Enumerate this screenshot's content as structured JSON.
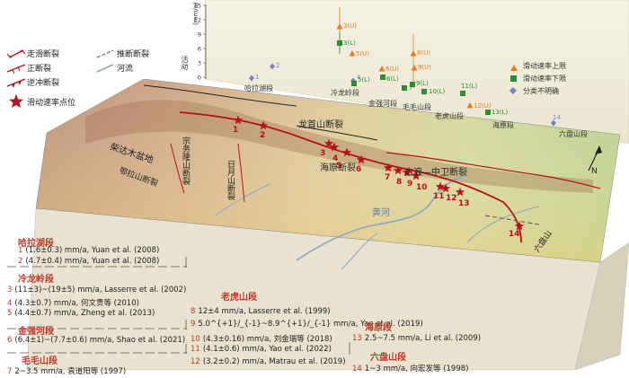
{
  "legend": {
    "strike_slip": "走滑断裂",
    "normal": "正断裂",
    "thrust": "逆冲断裂",
    "rate_site": "滑动速率点位",
    "inferred": "推断断裂",
    "river": "河流"
  },
  "plot": {
    "ylabel_unit": "(mm/a)",
    "ylabel_cn": "活动",
    "y_ticks": [
      "0",
      "3",
      "6",
      "9",
      "12",
      "15"
    ],
    "legend_upper": "滑动速率上限",
    "legend_lower": "滑动速率下限",
    "legend_unclear": "分类不明确",
    "segments": [
      "哈拉湖段",
      "冷龙岭段",
      "金强河段",
      "毛毛山段",
      "老虎山段",
      "海原段",
      "六盘山段"
    ],
    "point_labels": [
      {
        "label": "1",
        "color": "#7b7fc4"
      },
      {
        "label": "2",
        "color": "#7b7fc4"
      },
      {
        "label": "3(U)",
        "color": "#e67e22"
      },
      {
        "label": "3(L)",
        "color": "#2e8b2e"
      },
      {
        "label": "4",
        "color": "#7b7fc4"
      },
      {
        "label": "5(U)",
        "color": "#e67e22"
      },
      {
        "label": "5(L)",
        "color": "#2e8b2e"
      },
      {
        "label": "6(U)",
        "color": "#e67e22"
      },
      {
        "label": "6(L)",
        "color": "#2e8b2e"
      },
      {
        "label": "7",
        "color": "#2e8b2e"
      },
      {
        "label": "8(U)",
        "color": "#e67e22"
      },
      {
        "label": "9(U)",
        "color": "#e67e22"
      },
      {
        "label": "9(L)",
        "color": "#2e8b2e"
      },
      {
        "label": "10(L)",
        "color": "#2e8b2e"
      },
      {
        "label": "11(L)",
        "color": "#2e8b2e"
      },
      {
        "label": "12(U)",
        "color": "#e67e22"
      },
      {
        "label": "13(L)",
        "color": "#2e8b2e"
      },
      {
        "label": "14",
        "color": "#7b7fc4"
      }
    ]
  },
  "map_labels": {
    "qaidam": "柴达木盆地",
    "zongwulong": "宗务隆山断裂",
    "elashan": "鄂拉山断裂",
    "riyue": "日月山断裂",
    "longshou": "龙首山断裂",
    "gulang": "古浪—中卫断裂",
    "haiyuan": "海原断裂",
    "huanghe": "黄河",
    "liupan": "六盘山",
    "north": "N"
  },
  "site_numbers": [
    "1",
    "2",
    "3",
    "4",
    "5",
    "6",
    "7",
    "8",
    "9",
    "10",
    "11",
    "12",
    "13",
    "14"
  ],
  "refs": {
    "halahu": {
      "title": "哈拉湖段",
      "items": [
        {
          "n": "1",
          "text": "(1.6±0.3) mm/a,  Yuan et al. (2008)"
        },
        {
          "n": "2",
          "text": "(4.7±0.4) mm/a,  Yuan et al. (2008)"
        }
      ]
    },
    "lenglongling": {
      "title": "冷龙岭段",
      "items": [
        {
          "n": "3",
          "text": "(11±3)~(19±5) mm/a,  Lasserre et al. (2002)"
        },
        {
          "n": "4",
          "text": "(4.3±0.7) mm/a,  何文贵等 (2010)"
        },
        {
          "n": "5",
          "text": "(4.4±0.7) mm/a,  Zheng et al. (2013)"
        }
      ]
    },
    "jinqianghe": {
      "title": "金强河段",
      "items": [
        {
          "n": "6",
          "text": "(6.4±1)~(7.7±0.6) mm/a, Shao et al. (2021)"
        }
      ]
    },
    "maomaoshan": {
      "title": "毛毛山段",
      "items": [
        {
          "n": "7",
          "text": "2~3.5 mm/a,  袁道阳等 (1997)"
        }
      ]
    },
    "laohushan": {
      "title": "老虎山段",
      "items": [
        {
          "n": "8",
          "text": "12±4 mm/a,   Lasserre et al. (1999)"
        },
        {
          "n": "9",
          "text": "5.0^{+1}/_{-1}~8.9^{+1}/_{-1} mm/a,  Yao et al. (2019)"
        },
        {
          "n": "10",
          "text": "(4.3±0.16) mm/a,  刘金瑞等 (2018)"
        },
        {
          "n": "11",
          "text": "(4.1±0.6) mm/a,  Yao et al. (2022)"
        },
        {
          "n": "12",
          "text": "(3.2±0.2) mm/a,  Matrau et al. (2019)"
        }
      ]
    },
    "haiyuan": {
      "title": "海原段",
      "items": [
        {
          "n": "13",
          "text": "2.5~7.5 mm/a,  Li et al. (2009)"
        }
      ]
    },
    "liupanshan": {
      "title": "六盘山段",
      "items": [
        {
          "n": "14",
          "text": "1~3 mm/a,  向宏发等 (1998)"
        }
      ]
    }
  },
  "colors": {
    "upper": "#e67e22",
    "lower": "#2e8b2e",
    "unclear": "#7b7fc4",
    "fault": "#b5121b",
    "title": "#c0392b"
  }
}
